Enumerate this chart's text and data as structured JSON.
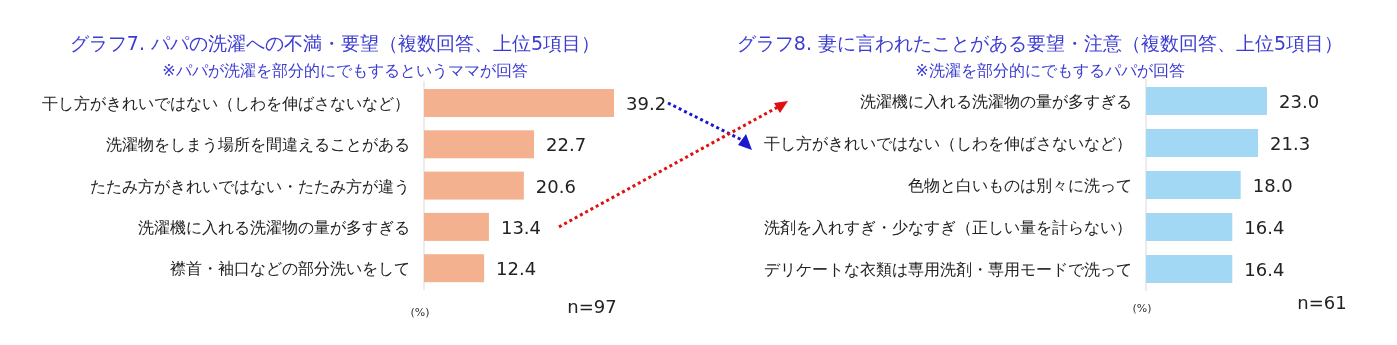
{
  "chart_data": [
    {
      "type": "bar",
      "orientation": "horizontal",
      "title": "グラフ7.  パパの洗濯への不満・要望（複数回答、上位5項目）",
      "subtitle": "※パパが洗濯を部分的にでもするというママが回答",
      "categories": [
        "干し方がきれいではない（しわを伸ばさないなど）",
        "洗濯物をしまう場所を間違えることがある",
        "たたみ方がきれいではない・たたみ方が違う",
        "洗濯機に入れる洗濯物の量が多すぎる",
        "襟首・袖口などの部分洗いをして"
      ],
      "series": [
        {
          "color": "#f4b190",
          "values": [
            39.2,
            22.7,
            20.6,
            13.4,
            12.4
          ],
          "value_labels": [
            "39.2",
            "22.7",
            "20.6",
            "13.4",
            "12.4"
          ]
        }
      ],
      "annotations": [
        "(%)",
        "n=97"
      ]
    },
    {
      "type": "bar",
      "orientation": "horizontal",
      "title": "グラフ8.  妻に言われたことがある要望・注意（複数回答、上位5項目）",
      "subtitle": "※洗濯を部分的にでもするパパが回答",
      "categories": [
        "洗濯機に入れる洗濯物の量が多すぎる",
        "干し方がきれいではない（しわを伸ばさないなど）",
        "色物と白いものは別々に洗って",
        "洗剤を入れすぎ・少なすぎ（正しい量を計らない）",
        "デリケートな衣類は専用洗剤・専用モードで洗って"
      ],
      "series": [
        {
          "color": "#a3d8f4",
          "values": [
            23.0,
            21.3,
            18.0,
            16.4,
            16.4
          ],
          "value_labels": [
            "23.0",
            "21.3",
            "18.0",
            "16.4",
            "16.4"
          ]
        }
      ],
      "annotations": [
        "(%)",
        "n=61"
      ]
    }
  ]
}
